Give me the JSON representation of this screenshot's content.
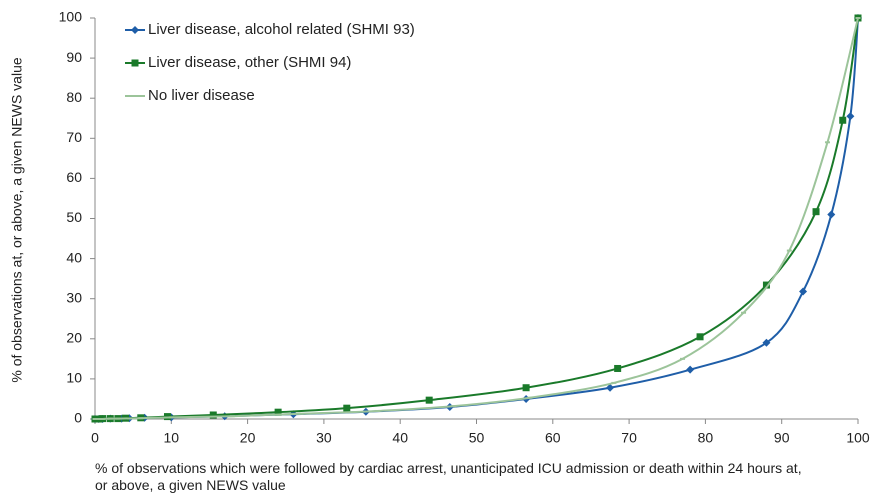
{
  "chart_data": {
    "type": "line",
    "xlabel": "% of observations which were followed by cardiac arrest, unanticipated ICU admission or death within 24 hours at, or above, a given NEWS value",
    "ylabel": "% of observations at, or above, a given NEWS value",
    "xlim": [
      0,
      100
    ],
    "xticks": [
      0,
      10,
      20,
      30,
      40,
      50,
      60,
      70,
      80,
      90,
      100
    ],
    "ylim": [
      0,
      100
    ],
    "yticks": [
      0,
      10,
      20,
      30,
      40,
      50,
      60,
      70,
      80,
      90,
      100
    ],
    "grid": false,
    "legend": "upper left",
    "series": [
      {
        "name": "Liver disease, alcohol related (SHMI 93)",
        "color": "#1f5ea8",
        "marker": "diamond",
        "x": [
          0,
          0.5,
          1,
          2,
          3.5,
          4.5,
          6.5,
          10,
          17,
          26,
          35.5,
          46.5,
          56.5,
          67.5,
          78,
          88,
          92.8,
          96.5,
          99,
          100
        ],
        "values": [
          0,
          0,
          0,
          0.1,
          0.1,
          0.2,
          0.3,
          0.4,
          0.7,
          1.2,
          1.8,
          3,
          5,
          7.8,
          12.3,
          19,
          31.8,
          51,
          75.5,
          100
        ]
      },
      {
        "name": "Liver disease, other (SHMI 94)",
        "color": "#1a7a2a",
        "marker": "square",
        "x": [
          0,
          0.5,
          1,
          2,
          3,
          4,
          6,
          9.5,
          15.5,
          24,
          33,
          43.8,
          56.5,
          68.5,
          79.3,
          88,
          94.5,
          98,
          100
        ],
        "values": [
          0,
          0,
          0.1,
          0.1,
          0.1,
          0.2,
          0.3,
          0.6,
          1,
          1.7,
          2.7,
          4.7,
          7.8,
          12.6,
          20.5,
          33.4,
          51.7,
          74.5,
          100
        ]
      },
      {
        "name": "No liver disease",
        "color": "#9cc49a",
        "marker": "dash",
        "x": [
          0,
          1,
          2,
          3,
          6,
          10,
          18,
          27,
          37,
          47,
          57,
          68,
          77,
          85,
          91,
          96,
          100
        ],
        "values": [
          0,
          0,
          0.1,
          0.1,
          0.2,
          0.4,
          0.7,
          1.3,
          2,
          3.2,
          5.3,
          9,
          15,
          26.5,
          42,
          69,
          100
        ]
      }
    ]
  }
}
